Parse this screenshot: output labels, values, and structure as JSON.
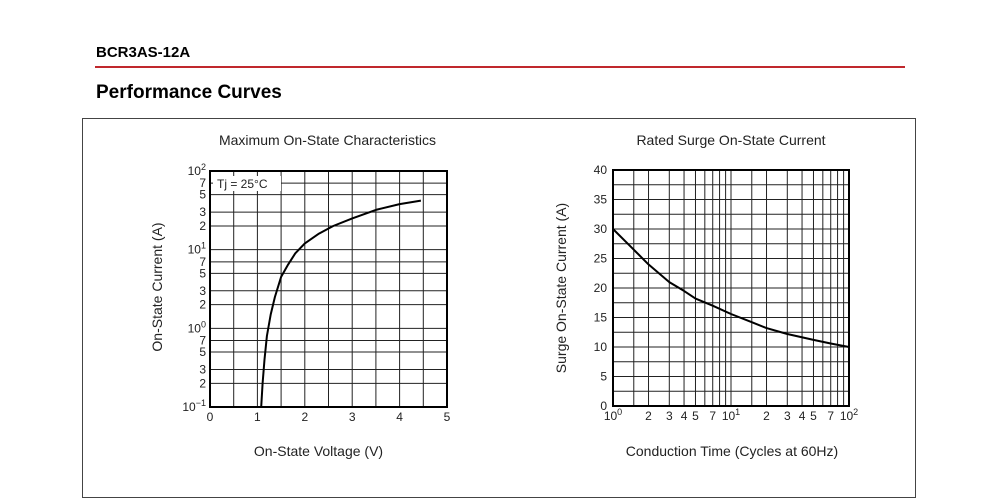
{
  "header": {
    "part_number": "BCR3AS-12A",
    "section_title": "Performance Curves",
    "rule_color": "#c0282d"
  },
  "chart_data": [
    {
      "type": "line",
      "title": "Maximum On-State Characteristics",
      "xlabel": "On-State Voltage  (V)",
      "ylabel": "On-State Current  (A)",
      "x_scale": "linear",
      "y_scale": "log",
      "xlim": [
        0,
        5
      ],
      "ylim": [
        0.1,
        100
      ],
      "x_ticks": [
        0,
        1,
        2,
        3,
        4,
        5
      ],
      "x_tick_labels": [
        "0",
        "1",
        "2",
        "3",
        "4",
        "5"
      ],
      "y_tick_labels": [
        {
          "value": 100,
          "base": "10",
          "exp": "2"
        },
        {
          "value": 70,
          "base": "7",
          "exp": ""
        },
        {
          "value": 50,
          "base": "5",
          "exp": ""
        },
        {
          "value": 30,
          "base": "3",
          "exp": ""
        },
        {
          "value": 20,
          "base": "2",
          "exp": ""
        },
        {
          "value": 10,
          "base": "10",
          "exp": "1"
        },
        {
          "value": 7,
          "base": "7",
          "exp": ""
        },
        {
          "value": 5,
          "base": "5",
          "exp": ""
        },
        {
          "value": 3,
          "base": "3",
          "exp": ""
        },
        {
          "value": 2,
          "base": "2",
          "exp": ""
        },
        {
          "value": 1,
          "base": "10",
          "exp": "0"
        },
        {
          "value": 0.7,
          "base": "7",
          "exp": ""
        },
        {
          "value": 0.5,
          "base": "5",
          "exp": ""
        },
        {
          "value": 0.3,
          "base": "3",
          "exp": ""
        },
        {
          "value": 0.2,
          "base": "2",
          "exp": ""
        },
        {
          "value": 0.1,
          "base": "10",
          "exp": "−1"
        }
      ],
      "grid_x": [
        0.5,
        1,
        1.5,
        2,
        2.5,
        3,
        3.5,
        4,
        4.5
      ],
      "grid_y": [
        0.2,
        0.3,
        0.5,
        0.7,
        1,
        2,
        3,
        5,
        7,
        10,
        20,
        30,
        50,
        70
      ],
      "annotation": "Tj = 25°C",
      "grid": true,
      "series": [
        {
          "x": [
            1.08,
            1.11,
            1.15,
            1.2,
            1.28,
            1.37,
            1.5,
            1.65,
            1.8,
            2.0,
            2.3,
            2.6,
            3.0,
            3.5,
            4.0,
            4.45
          ],
          "y": [
            0.1,
            0.2,
            0.4,
            0.8,
            1.5,
            2.5,
            4.5,
            6.5,
            9,
            12,
            16,
            20,
            25,
            32,
            38,
            42
          ]
        }
      ]
    },
    {
      "type": "line",
      "title": "Rated Surge On-State Current",
      "xlabel": "Conduction Time  (Cycles at 60Hz)",
      "ylabel": "Surge On-State Current  (A)",
      "x_scale": "log",
      "y_scale": "linear",
      "xlim": [
        1,
        100
      ],
      "ylim": [
        0,
        40
      ],
      "x_tick_labels": [
        {
          "value": 1,
          "base": "10",
          "exp": "0"
        },
        {
          "value": 2,
          "base": "2",
          "exp": ""
        },
        {
          "value": 3,
          "base": "3",
          "exp": ""
        },
        {
          "value": 4,
          "base": "4",
          "exp": ""
        },
        {
          "value": 5,
          "base": "5",
          "exp": ""
        },
        {
          "value": 7,
          "base": "7",
          "exp": ""
        },
        {
          "value": 10,
          "base": "10",
          "exp": "1"
        },
        {
          "value": 20,
          "base": "2",
          "exp": ""
        },
        {
          "value": 30,
          "base": "3",
          "exp": ""
        },
        {
          "value": 40,
          "base": "4",
          "exp": ""
        },
        {
          "value": 50,
          "base": "5",
          "exp": ""
        },
        {
          "value": 70,
          "base": "7",
          "exp": ""
        },
        {
          "value": 100,
          "base": "10",
          "exp": "2"
        }
      ],
      "y_ticks": [
        0,
        5,
        10,
        15,
        20,
        25,
        30,
        35,
        40
      ],
      "y_tick_labels": [
        "0",
        "5",
        "10",
        "15",
        "20",
        "25",
        "30",
        "35",
        "40"
      ],
      "grid_x": [
        1.5,
        2,
        3,
        4,
        5,
        6,
        7,
        8,
        9,
        10,
        15,
        20,
        30,
        40,
        50,
        60,
        70,
        80,
        90
      ],
      "grid_y": [
        2.5,
        5,
        7.5,
        10,
        12.5,
        15,
        17.5,
        20,
        22.5,
        25,
        27.5,
        30,
        32.5,
        35,
        37.5
      ],
      "grid": true,
      "series": [
        {
          "x": [
            1,
            1.5,
            2,
            3,
            4,
            5,
            7,
            10,
            15,
            20,
            30,
            50,
            70,
            100
          ],
          "y": [
            30,
            26.5,
            24,
            21,
            19.5,
            18.2,
            17,
            15.6,
            14.2,
            13.2,
            12.2,
            11.2,
            10.6,
            10
          ]
        }
      ]
    }
  ]
}
